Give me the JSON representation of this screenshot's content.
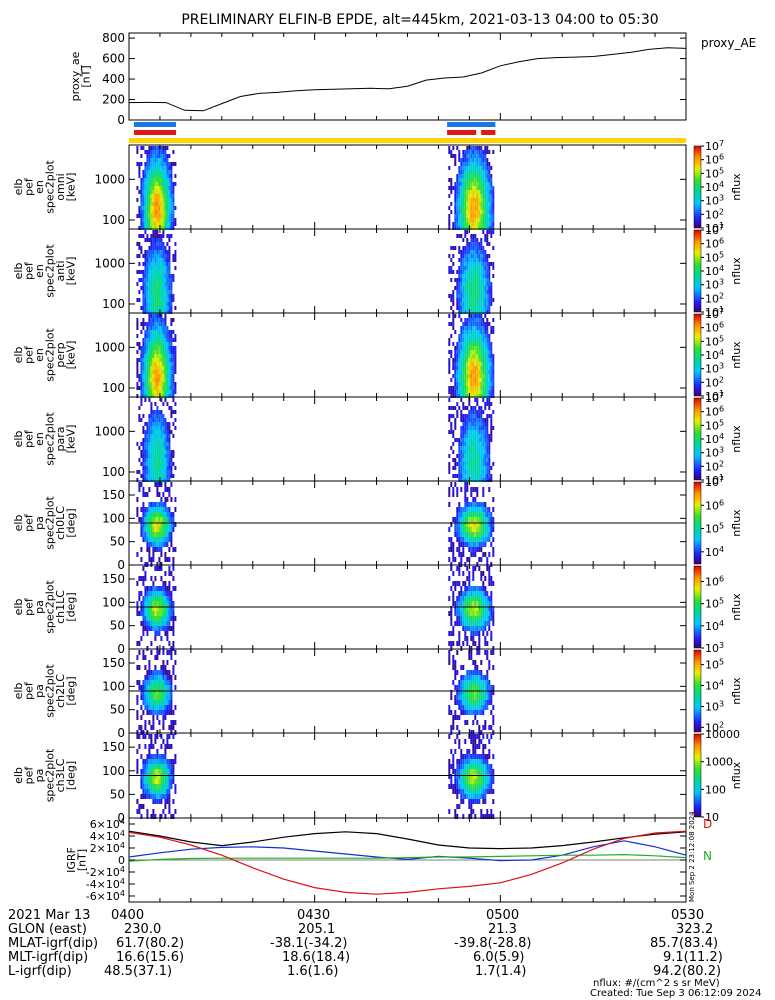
{
  "title": "PRELIMINARY ELFIN-B EPDE, alt=445km, 2021-03-13 04:00 to 05:30",
  "colors": {
    "bar_blue": "#1a78e6",
    "bar_red": "#e01818",
    "yellow_bar": "#ffd400",
    "grf_black": "#000000",
    "grf_blue": "#1030d0",
    "grf_green": "#20b020",
    "grf_red": "#e01010"
  },
  "chart_data": [
    {
      "type": "line",
      "panel": "proxy_ae",
      "ylabel_lines": [
        "proxy_ae",
        "[nT]"
      ],
      "legend": "proxy_AE",
      "ylim": [
        0,
        850
      ],
      "yticks": [
        "0",
        "200",
        "400",
        "600",
        "800"
      ],
      "x_minutes": [
        0,
        3,
        6,
        9,
        12,
        15,
        18,
        21,
        24,
        27,
        30,
        33,
        36,
        39,
        42,
        45,
        48,
        51,
        54,
        57,
        60,
        63,
        66,
        69,
        72,
        75,
        78,
        81,
        84,
        87,
        90
      ],
      "values": [
        170,
        172,
        170,
        95,
        90,
        160,
        230,
        260,
        270,
        285,
        295,
        300,
        305,
        310,
        305,
        330,
        390,
        410,
        420,
        460,
        530,
        570,
        600,
        610,
        615,
        620,
        640,
        660,
        690,
        705,
        700
      ]
    },
    {
      "type": "bar",
      "panel": "science_zones",
      "blue_segments_minutes": [
        [
          0.8,
          7.6
        ],
        [
          51.4,
          59.2
        ]
      ],
      "red_segments_minutes": [
        [
          0.8,
          7.6
        ],
        [
          51.4,
          56.1
        ],
        [
          56.9,
          59.2
        ]
      ],
      "yellow_segments_minutes": [
        [
          0,
          90
        ]
      ]
    },
    {
      "type": "heatmap",
      "panel": "elb_pef_en_spec2plot_omni",
      "ylabel_lines": [
        "elb",
        "pef",
        "en",
        "spec2plot",
        "omni",
        "[keV]"
      ],
      "yscale": "log",
      "ylim_keV": [
        60,
        7000
      ],
      "yticks": [
        "100",
        "1000"
      ],
      "colorbar": {
        "label": "nflux",
        "scale": "log",
        "min": 10,
        "max": 10000000,
        "ticks": [
          "10<sup>1</sup>",
          "10<sup>2</sup>",
          "10<sup>3</sup>",
          "10<sup>4</sup>",
          "10<sup>5</sup>",
          "10<sup>6</sup>",
          "10<sup>7</sup>"
        ]
      },
      "intervals_minutes": [
        [
          1.2,
          7.6
        ],
        [
          51.6,
          59.0
        ]
      ]
    },
    {
      "type": "heatmap",
      "panel": "elb_pef_en_spec2plot_anti",
      "ylabel_lines": [
        "elb",
        "pef",
        "en",
        "spec2plot",
        "anti",
        "[keV]"
      ],
      "yscale": "log",
      "ylim_keV": [
        60,
        7000
      ],
      "yticks": [
        "100",
        "1000"
      ],
      "colorbar": {
        "label": "nflux",
        "scale": "log",
        "min": 10,
        "max": 10000000,
        "ticks": [
          "10<sup>1</sup>",
          "10<sup>2</sup>",
          "10<sup>3</sup>",
          "10<sup>4</sup>",
          "10<sup>5</sup>",
          "10<sup>6</sup>",
          "10<sup>7</sup>"
        ]
      },
      "intervals_minutes": [
        [
          1.2,
          7.6
        ],
        [
          51.6,
          59.0
        ]
      ]
    },
    {
      "type": "heatmap",
      "panel": "elb_pef_en_spec2plot_perp",
      "ylabel_lines": [
        "elb",
        "pef",
        "en",
        "spec2plot",
        "perp",
        "[keV]"
      ],
      "yscale": "log",
      "ylim_keV": [
        60,
        7000
      ],
      "yticks": [
        "100",
        "1000"
      ],
      "colorbar": {
        "label": "nflux",
        "scale": "log",
        "min": 10,
        "max": 10000000,
        "ticks": [
          "10<sup>1</sup>",
          "10<sup>2</sup>",
          "10<sup>3</sup>",
          "10<sup>4</sup>",
          "10<sup>5</sup>",
          "10<sup>6</sup>",
          "10<sup>7</sup>"
        ]
      },
      "intervals_minutes": [
        [
          1.2,
          7.6
        ],
        [
          51.6,
          59.0
        ]
      ]
    },
    {
      "type": "heatmap",
      "panel": "elb_pef_en_spec2plot_para",
      "ylabel_lines": [
        "elb",
        "pef",
        "en",
        "spec2plot",
        "para",
        "[keV]"
      ],
      "yscale": "log",
      "ylim_keV": [
        60,
        7000
      ],
      "yticks": [
        "100",
        "1000"
      ],
      "colorbar": {
        "label": "nflux",
        "scale": "log",
        "min": 10,
        "max": 10000000,
        "ticks": [
          "10<sup>1</sup>",
          "10<sup>2</sup>",
          "10<sup>3</sup>",
          "10<sup>4</sup>",
          "10<sup>5</sup>",
          "10<sup>6</sup>",
          "10<sup>7</sup>"
        ]
      },
      "intervals_minutes": [
        [
          1.2,
          7.6
        ],
        [
          51.6,
          59.0
        ]
      ]
    },
    {
      "type": "heatmap",
      "panel": "elb_pef_pa_spec2plot_ch0LC",
      "ylabel_lines": [
        "elb",
        "pef",
        "pa",
        "spec2plot",
        "ch0LC",
        "[deg]"
      ],
      "ylim_deg": [
        0,
        180
      ],
      "yticks": [
        "0",
        "50",
        "100",
        "150"
      ],
      "reference_line_deg": 90,
      "colorbar": {
        "label": "nflux",
        "scale": "log",
        "min": 3000,
        "max": 10000000,
        "ticks": [
          "10<sup>4</sup>",
          "10<sup>5</sup>",
          "10<sup>6</sup>",
          "10<sup>7</sup>"
        ]
      },
      "intervals_minutes": [
        [
          1.2,
          7.6
        ],
        [
          51.6,
          59.0
        ]
      ]
    },
    {
      "type": "heatmap",
      "panel": "elb_pef_pa_spec2plot_ch1LC",
      "ylabel_lines": [
        "elb",
        "pef",
        "pa",
        "spec2plot",
        "ch1LC",
        "[deg]"
      ],
      "ylim_deg": [
        0,
        180
      ],
      "yticks": [
        "0",
        "50",
        "100",
        "150"
      ],
      "reference_line_deg": 90,
      "colorbar": {
        "label": "nflux",
        "scale": "log",
        "min": 1000,
        "max": 5000000,
        "ticks": [
          "10<sup>3</sup>",
          "10<sup>4</sup>",
          "10<sup>5</sup>",
          "10<sup>6</sup>"
        ]
      },
      "intervals_minutes": [
        [
          1.2,
          7.6
        ],
        [
          51.6,
          59.0
        ]
      ]
    },
    {
      "type": "heatmap",
      "panel": "elb_pef_pa_spec2plot_ch2LC",
      "ylabel_lines": [
        "elb",
        "pef",
        "pa",
        "spec2plot",
        "ch2LC",
        "[deg]"
      ],
      "ylim_deg": [
        0,
        180
      ],
      "yticks": [
        "0",
        "50",
        "100",
        "150"
      ],
      "reference_line_deg": 90,
      "colorbar": {
        "label": "nflux",
        "scale": "log",
        "min": 60,
        "max": 500000,
        "ticks": [
          "10<sup>2</sup>",
          "10<sup>3</sup>",
          "10<sup>4</sup>",
          "10<sup>5</sup>"
        ]
      },
      "intervals_minutes": [
        [
          1.2,
          7.6
        ],
        [
          51.6,
          59.0
        ]
      ]
    },
    {
      "type": "heatmap",
      "panel": "elb_pef_pa_spec2plot_ch3LC",
      "ylabel_lines": [
        "elb",
        "pef",
        "pa",
        "spec2plot",
        "ch3LC",
        "[deg]"
      ],
      "ylim_deg": [
        0,
        180
      ],
      "yticks": [
        "0",
        "50",
        "100",
        "150"
      ],
      "reference_line_deg": 90,
      "colorbar": {
        "label": "nflux",
        "scale": "log",
        "min": 10,
        "max": 10000,
        "ticks": [
          "10",
          "100",
          "1000",
          "10000"
        ]
      },
      "intervals_minutes": [
        [
          1.2,
          7.6
        ],
        [
          51.6,
          59.0
        ]
      ]
    },
    {
      "type": "line",
      "panel": "IGRF",
      "ylabel_lines": [
        "IGRF",
        "[nT]"
      ],
      "ylim": [
        -70000,
        70000
      ],
      "yticks": [
        "-6×10<sup>4</sup>",
        "-4×10<sup>4</sup>",
        "-2×10<sup>4</sup>",
        "0",
        "2×10<sup>4</sup>",
        "4×10<sup>4</sup>",
        "6×10<sup>4</sup>"
      ],
      "legend": [
        "D",
        "N"
      ],
      "side_note": "Mon Sep  2 23:12:08 2024",
      "x_minutes": [
        0,
        5,
        10,
        15,
        20,
        25,
        30,
        35,
        40,
        45,
        50,
        55,
        60,
        65,
        70,
        75,
        80,
        85,
        90
      ],
      "series": [
        {
          "color": "grf_black",
          "values": [
            48000,
            40000,
            30000,
            24000,
            30000,
            38000,
            44000,
            47000,
            44000,
            35000,
            25000,
            20000,
            19000,
            20000,
            24000,
            30000,
            37000,
            43000,
            47000
          ]
        },
        {
          "color": "grf_blue",
          "values": [
            5000,
            12000,
            18000,
            21000,
            22000,
            20000,
            15000,
            10000,
            5000,
            1000,
            6000,
            3000,
            -1000,
            0,
            8000,
            22000,
            32000,
            22000,
            8000
          ]
        },
        {
          "color": "grf_green",
          "values": [
            -2000,
            1000,
            2500,
            3000,
            3000,
            3000,
            3000,
            3000,
            3000,
            4000,
            5000,
            5000,
            6000,
            7000,
            8000,
            8000,
            9000,
            7000,
            4000
          ]
        },
        {
          "color": "grf_red",
          "values": [
            46000,
            38000,
            25000,
            8000,
            -13000,
            -32000,
            -46000,
            -54000,
            -57000,
            -54000,
            -48000,
            -44000,
            -38000,
            -24000,
            -5000,
            18000,
            36000,
            45000,
            48000
          ]
        }
      ]
    }
  ],
  "time_axis": {
    "columns": [
      "2021 Mar 13",
      "0400",
      "0430",
      "0500",
      "0530"
    ],
    "x_minutes": [
      0,
      30,
      60,
      90
    ],
    "rows": [
      {
        "label": "GLON (east)",
        "values": [
          "230.0",
          "205.1",
          "21.3",
          "323.2"
        ]
      },
      {
        "label": "MLAT-igrf(dip)",
        "values": [
          "61.7(80.2)",
          "-38.1(-34.2)",
          "-39.8(-28.8)",
          "85.7(83.4)"
        ]
      },
      {
        "label": "MLT-igrf(dip)",
        "values": [
          "16.6(15.6)",
          "18.6(18.4)",
          "6.0(5.9)",
          "9.1(11.2)"
        ]
      },
      {
        "label": "L-igrf(dip)",
        "values": [
          "48.5(37.1)",
          "1.6(1.6)",
          "1.7(1.4)",
          "94.2(80.2)"
        ]
      }
    ]
  },
  "footer": {
    "units_note": "nflux: #/(cm^2 s sr MeV)",
    "created": "Created: Tue Sep  3 06:12:09 2024"
  }
}
